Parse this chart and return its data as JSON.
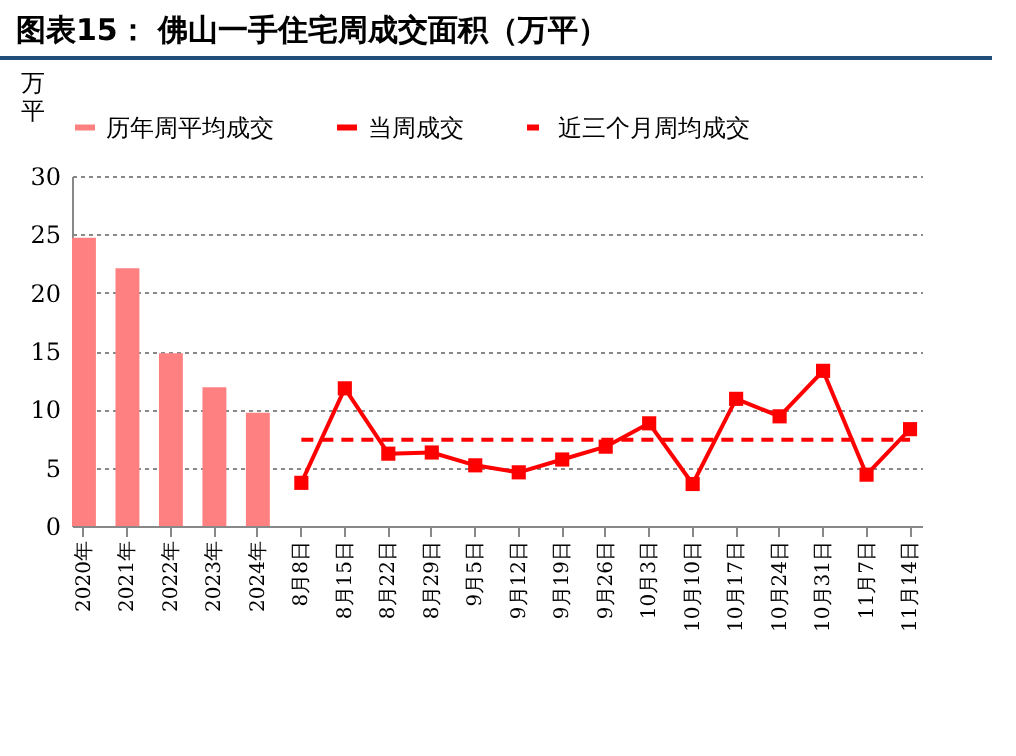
{
  "chart_data": {
    "type": "bar",
    "title": "图表15：  佛山一手住宅周成交面积（万平）",
    "ylabel": "万平",
    "categories": [
      "2020年",
      "2021年",
      "2022年",
      "2023年",
      "2024年",
      "8月8日",
      "8月15日",
      "8月22日",
      "8月29日",
      "9月5日",
      "9月12日",
      "9月19日",
      "9月26日",
      "10月3日",
      "10月10日",
      "10月17日",
      "10月24日",
      "10月31日",
      "11月7日",
      "11月14日"
    ],
    "series": [
      {
        "name": "历年周平均成交",
        "color": "#ff8080",
        "values": [
          24.7,
          22.1,
          14.8,
          11.9,
          9.7,
          null,
          null,
          null,
          null,
          null,
          null,
          null,
          null,
          null,
          null,
          null,
          null,
          null,
          null,
          null
        ]
      },
      {
        "name": "当周成交",
        "type": "line",
        "color": "#ff0000",
        "marker": "square",
        "line_style": "solid",
        "values": [
          null,
          null,
          null,
          null,
          null,
          3.7,
          11.8,
          6.2,
          6.3,
          5.2,
          4.6,
          5.7,
          6.8,
          8.8,
          3.6,
          10.9,
          9.4,
          13.3,
          4.4,
          8.3
        ]
      },
      {
        "name": "近三个月周均成交",
        "type": "line",
        "color": "#ff0000",
        "marker": "none",
        "line_style": "dashed",
        "values": [
          null,
          null,
          null,
          null,
          null,
          7.4,
          7.4,
          7.4,
          7.4,
          7.4,
          7.4,
          7.4,
          7.4,
          7.4,
          7.4,
          7.4,
          7.4,
          7.4,
          7.4,
          7.4
        ]
      }
    ],
    "ylim": [
      0,
      30
    ],
    "yticks": [
      0,
      5,
      10,
      15,
      20,
      25,
      30
    ],
    "grid": "y",
    "legend": "top"
  }
}
